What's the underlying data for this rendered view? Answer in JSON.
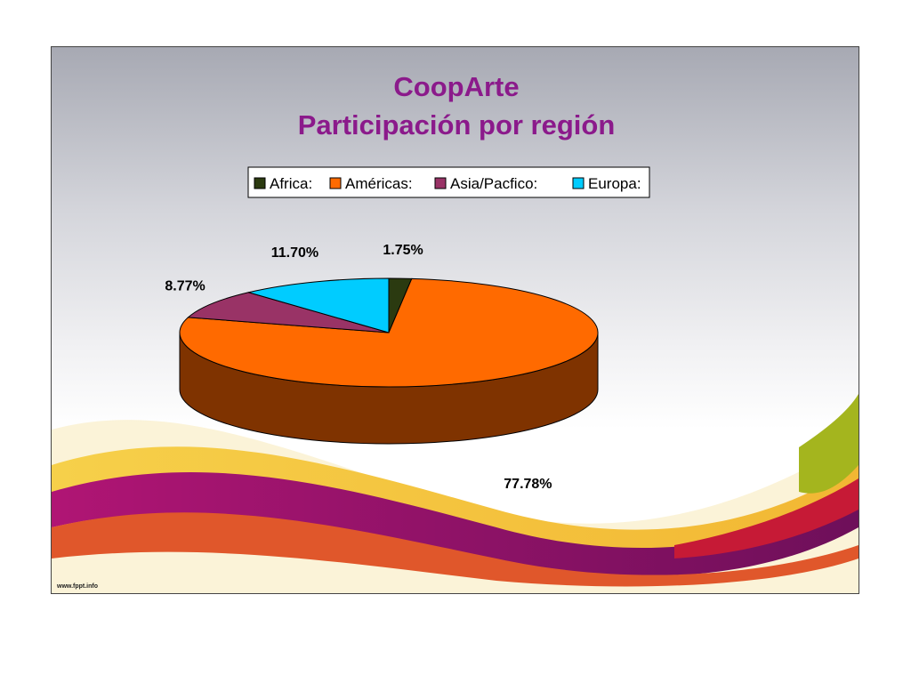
{
  "chart_data": {
    "type": "pie",
    "title": "CoopArte",
    "subtitle": "Participación por región",
    "legend_position": "top",
    "slices": [
      {
        "label": "Africa:",
        "value": 1.75,
        "value_label": "1.75%",
        "color": "#2b3a10",
        "side_color": "#1c2608"
      },
      {
        "label": "Américas:",
        "value": 77.78,
        "value_label": "77.78%",
        "color": "#ff6a00",
        "side_color": "#7f3300"
      },
      {
        "label": "Asia/Pacfico:",
        "value": 8.77,
        "value_label": "8.77%",
        "color": "#993366",
        "side_color": "#4d1933"
      },
      {
        "label": "Europa:",
        "value": 11.7,
        "value_label": "11.70%",
        "color": "#00ccff",
        "side_color": "#006680"
      }
    ]
  },
  "footer": {
    "text": "www.fppt.info"
  }
}
